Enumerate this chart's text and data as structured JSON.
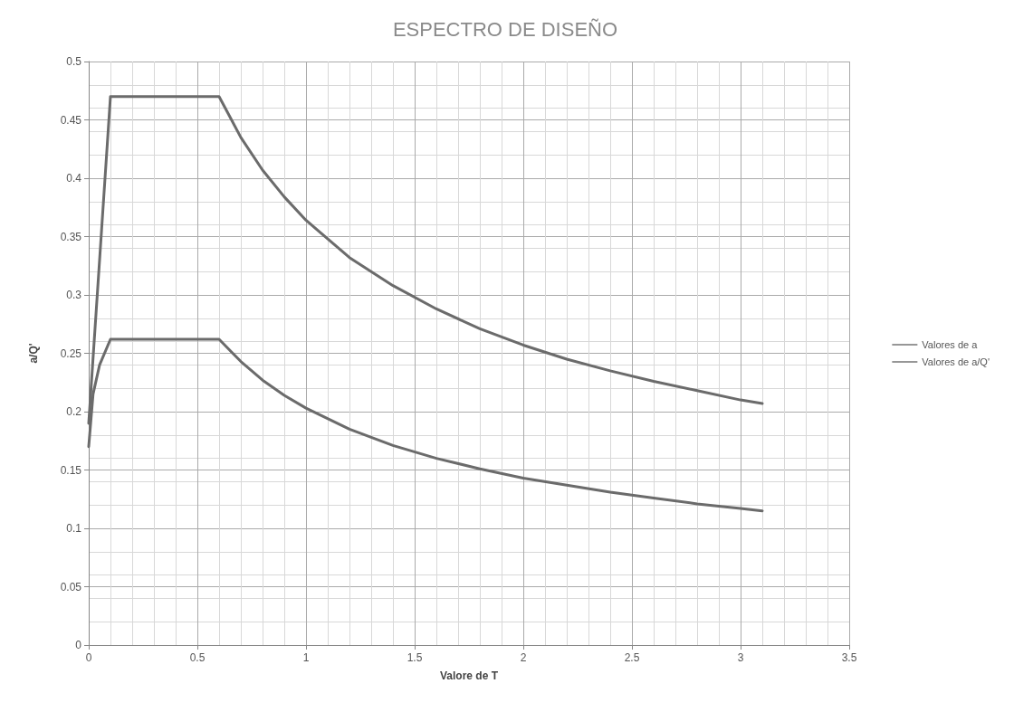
{
  "chart_data": {
    "type": "line",
    "title": "ESPECTRO DE DISEÑO",
    "xlabel": "Valore de T",
    "ylabel": "a/Q'",
    "xlim": [
      0,
      3.5
    ],
    "xticks": [
      0,
      0.5,
      1,
      1.5,
      2,
      2.5,
      3,
      3.5
    ],
    "ylim": [
      0,
      0.5
    ],
    "yticks": [
      0,
      0.05,
      0.1,
      0.15,
      0.2,
      0.25,
      0.3,
      0.35,
      0.4,
      0.45,
      0.5
    ],
    "grid": true,
    "legend": "right",
    "marker": "none",
    "line_style": "solid",
    "series": [
      {
        "name": "Valores de a",
        "color": "#6b6b6b",
        "x": [
          0,
          0.1,
          0.6,
          0.7,
          0.8,
          0.9,
          1,
          1.2,
          1.4,
          1.6,
          1.8,
          2,
          2.2,
          2.4,
          2.6,
          2.8,
          3,
          3.1
        ],
        "values": [
          0.19,
          0.47,
          0.47,
          0.435,
          0.407,
          0.384,
          0.364,
          0.332,
          0.308,
          0.288,
          0.271,
          0.257,
          0.245,
          0.235,
          0.226,
          0.218,
          0.21,
          0.207
        ]
      },
      {
        "name": "Valores de a/Q'",
        "color": "#6b6b6b",
        "x": [
          0,
          0.02,
          0.05,
          0.1,
          0.6,
          0.7,
          0.8,
          0.9,
          1,
          1.2,
          1.4,
          1.6,
          1.8,
          2,
          2.2,
          2.4,
          2.6,
          2.8,
          3,
          3.1
        ],
        "values": [
          0.17,
          0.215,
          0.24,
          0.262,
          0.262,
          0.243,
          0.227,
          0.214,
          0.203,
          0.185,
          0.171,
          0.16,
          0.151,
          0.143,
          0.137,
          0.131,
          0.126,
          0.121,
          0.117,
          0.115
        ]
      }
    ]
  }
}
